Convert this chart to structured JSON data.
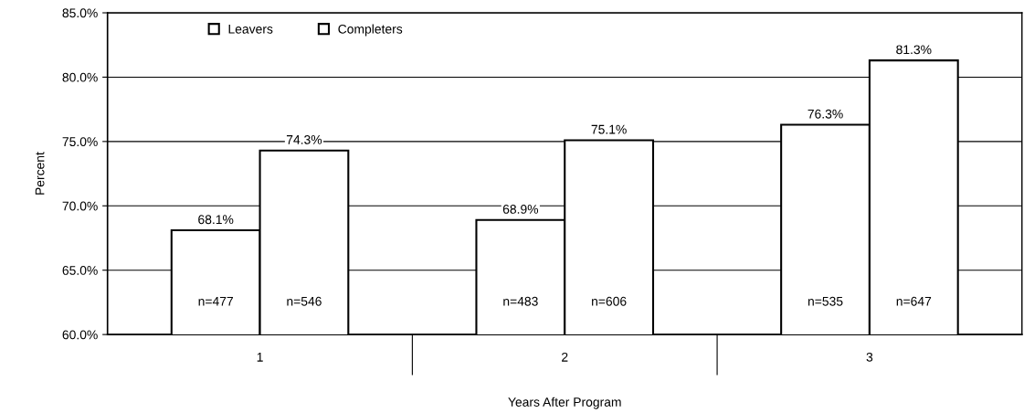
{
  "chart_data": {
    "type": "bar",
    "xlabel": "Years After Program",
    "ylabel": "Percent",
    "categories": [
      "1",
      "2",
      "3"
    ],
    "series": [
      {
        "name": "Leavers",
        "color": "#ffffff",
        "values": [
          68.1,
          68.9,
          76.3
        ]
      },
      {
        "name": "Completers",
        "color": "#ffffff",
        "values": [
          74.3,
          75.1,
          81.3
        ]
      }
    ],
    "ylim": [
      60,
      85
    ],
    "yticks": [
      {
        "value": 60,
        "label": "60.0%"
      },
      {
        "value": 65,
        "label": "65.0%"
      },
      {
        "value": 70,
        "label": "70.0%"
      },
      {
        "value": 75,
        "label": "75.0%"
      },
      {
        "value": 80,
        "label": "80.0%"
      },
      {
        "value": 85,
        "label": "85.0%"
      }
    ],
    "value_labels": [
      [
        "68.1%",
        "68.9%",
        "76.3%"
      ],
      [
        "74.3%",
        "75.1%",
        "81.3%"
      ]
    ],
    "annotations": [
      "n=477",
      "n=546",
      "n=483",
      "n=606",
      "n=535",
      "n=647"
    ],
    "grid": "y",
    "legend": "top left"
  }
}
